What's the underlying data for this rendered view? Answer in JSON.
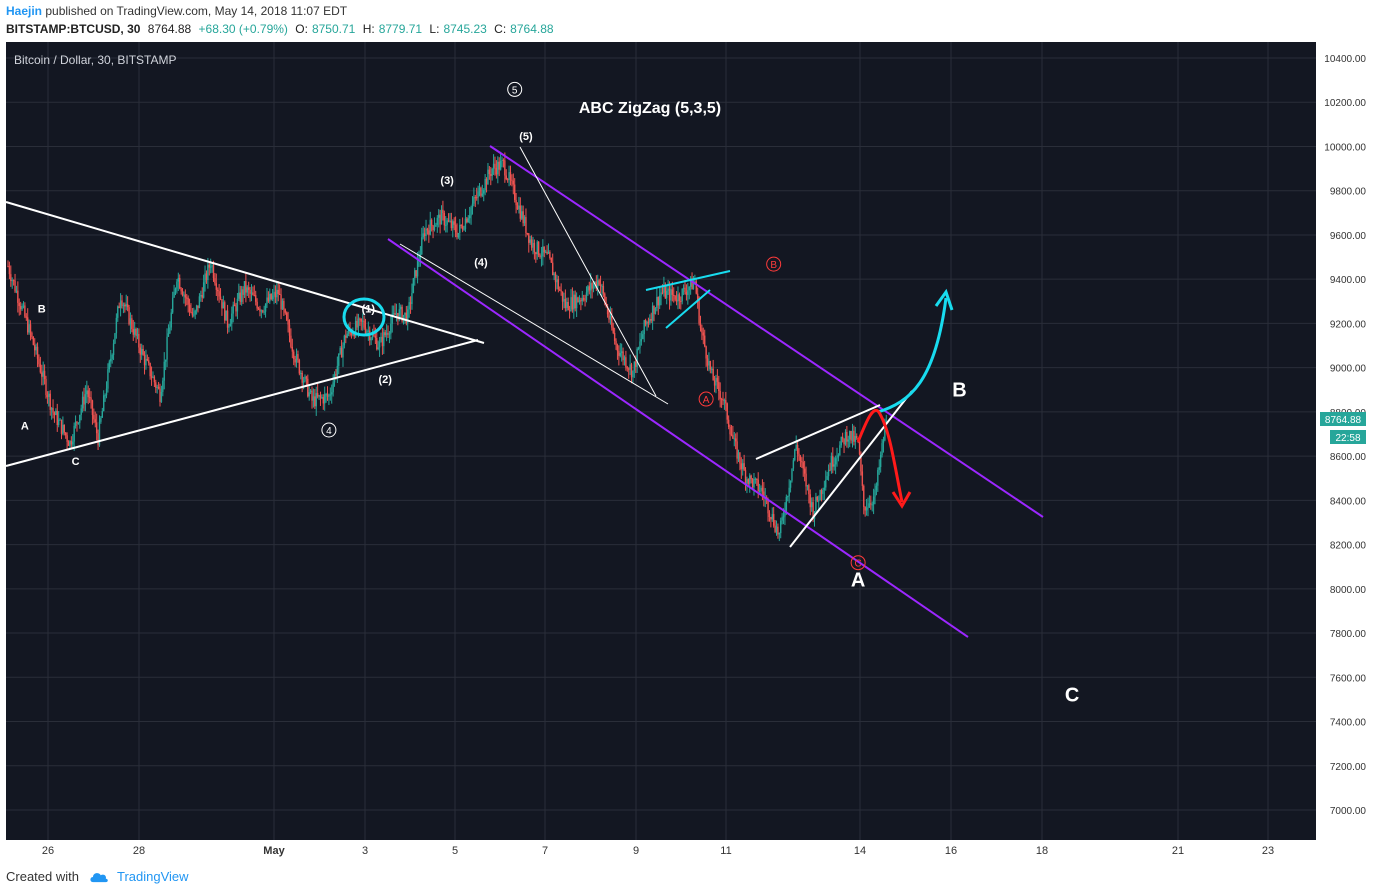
{
  "header": {
    "author": "Haejin",
    "published_text": "published on TradingView.com, May 14, 2018 11:07 EDT",
    "symbol": "BITSTAMP:BTCUSD, 30",
    "last": "8764.88",
    "change": "+68.30 (+0.79%)",
    "o_label": "O:",
    "o": "8750.71",
    "h_label": "H:",
    "h": "8779.71",
    "l_label": "L:",
    "l": "8745.23",
    "c_label": "C:",
    "c": "8764.88"
  },
  "footer": {
    "created_with": "Created with",
    "brand": "TradingView"
  },
  "colors": {
    "background": "#131722",
    "grid": "#2a2e39",
    "axis_text": "#333333",
    "candle_up": "#26a69a",
    "candle_down": "#ef5350",
    "purple": "#9c27ff",
    "cyan": "#18dcef",
    "red": "#ff1a1a",
    "white": "#ffffff",
    "price_badge": "#26a69a"
  },
  "chart_data": {
    "type": "candlestick",
    "title": "Bitcoin / Dollar, 30, BITSTAMP",
    "annotation_title": "ABC ZigZag (5,3,5)",
    "x_ticks": [
      "26",
      "28",
      "May",
      "3",
      "5",
      "7",
      "9",
      "11",
      "14",
      "16",
      "18",
      "21",
      "23"
    ],
    "y_ticks": [
      "10400.00",
      "10200.00",
      "10000.00",
      "9800.00",
      "9600.00",
      "9400.00",
      "9200.00",
      "9000.00",
      "8800.00",
      "8600.00",
      "8400.00",
      "8200.00",
      "8000.00",
      "7800.00",
      "7600.00",
      "7400.00",
      "7200.00",
      "7000.00"
    ],
    "ylim": [
      6850,
      10550
    ],
    "last_price": "8764.88",
    "countdown": "22:58",
    "price_path": [
      [
        0,
        9460
      ],
      [
        4,
        9150
      ],
      [
        8,
        8800
      ],
      [
        11,
        8660
      ],
      [
        14,
        8900
      ],
      [
        16,
        8680
      ],
      [
        20,
        9330
      ],
      [
        24,
        9050
      ],
      [
        27,
        8880
      ],
      [
        30,
        9420
      ],
      [
        33,
        9220
      ],
      [
        36,
        9480
      ],
      [
        39,
        9200
      ],
      [
        42,
        9360
      ],
      [
        45,
        9270
      ],
      [
        48,
        9340
      ],
      [
        51,
        9050
      ],
      [
        54,
        8850
      ],
      [
        57,
        8870
      ],
      [
        60,
        9150
      ],
      [
        63,
        9200
      ],
      [
        66,
        9100
      ],
      [
        69,
        9250
      ],
      [
        71,
        9230
      ],
      [
        72,
        9380
      ],
      [
        74,
        9620
      ],
      [
        77,
        9680
      ],
      [
        80,
        9610
      ],
      [
        83,
        9760
      ],
      [
        86,
        9900
      ],
      [
        88,
        9920
      ],
      [
        90,
        9780
      ],
      [
        93,
        9560
      ],
      [
        96,
        9490
      ],
      [
        99,
        9280
      ],
      [
        102,
        9320
      ],
      [
        105,
        9400
      ],
      [
        108,
        9100
      ],
      [
        111,
        8980
      ],
      [
        113,
        9180
      ],
      [
        116,
        9340
      ],
      [
        119,
        9320
      ],
      [
        122,
        9390
      ],
      [
        123,
        9180
      ],
      [
        125,
        8960
      ],
      [
        127,
        8860
      ],
      [
        129,
        8650
      ],
      [
        131,
        8510
      ],
      [
        134,
        8440
      ],
      [
        137,
        8240
      ],
      [
        140,
        8650
      ],
      [
        143,
        8350
      ],
      [
        146,
        8560
      ],
      [
        149,
        8700
      ],
      [
        151,
        8660
      ],
      [
        152,
        8370
      ],
      [
        154,
        8420
      ],
      [
        156,
        8765
      ]
    ],
    "labels": [
      {
        "text": "A",
        "x": 3,
        "y": 8720,
        "style": "small"
      },
      {
        "text": "B",
        "x": 6,
        "y": 9250,
        "style": "small"
      },
      {
        "text": "C",
        "x": 12,
        "y": 8560,
        "style": "small"
      },
      {
        "text": "(1)",
        "x": 64,
        "y": 9250,
        "style": "small"
      },
      {
        "text": "(2)",
        "x": 67,
        "y": 8930,
        "style": "small"
      },
      {
        "text": "(3)",
        "x": 78,
        "y": 9830,
        "style": "small"
      },
      {
        "text": "(4)",
        "x": 84,
        "y": 9460,
        "style": "small"
      },
      {
        "text": "(5)",
        "x": 92,
        "y": 10030,
        "style": "small"
      },
      {
        "text": "4",
        "x": 57,
        "y": 8700,
        "style": "circle-white"
      },
      {
        "text": "5",
        "x": 90,
        "y": 10240,
        "style": "circle-white"
      },
      {
        "text": "A",
        "x": 124,
        "y": 8840,
        "style": "circle-red"
      },
      {
        "text": "B",
        "x": 136,
        "y": 9450,
        "style": "circle-red"
      },
      {
        "text": "C",
        "x": 151,
        "y": 8100,
        "style": "circle-red"
      },
      {
        "text": "A",
        "x": 151,
        "y": 8010,
        "style": "big"
      },
      {
        "text": "B",
        "x": 169,
        "y": 8870,
        "style": "big"
      },
      {
        "text": "C",
        "x": 189,
        "y": 7490,
        "style": "big"
      }
    ]
  }
}
